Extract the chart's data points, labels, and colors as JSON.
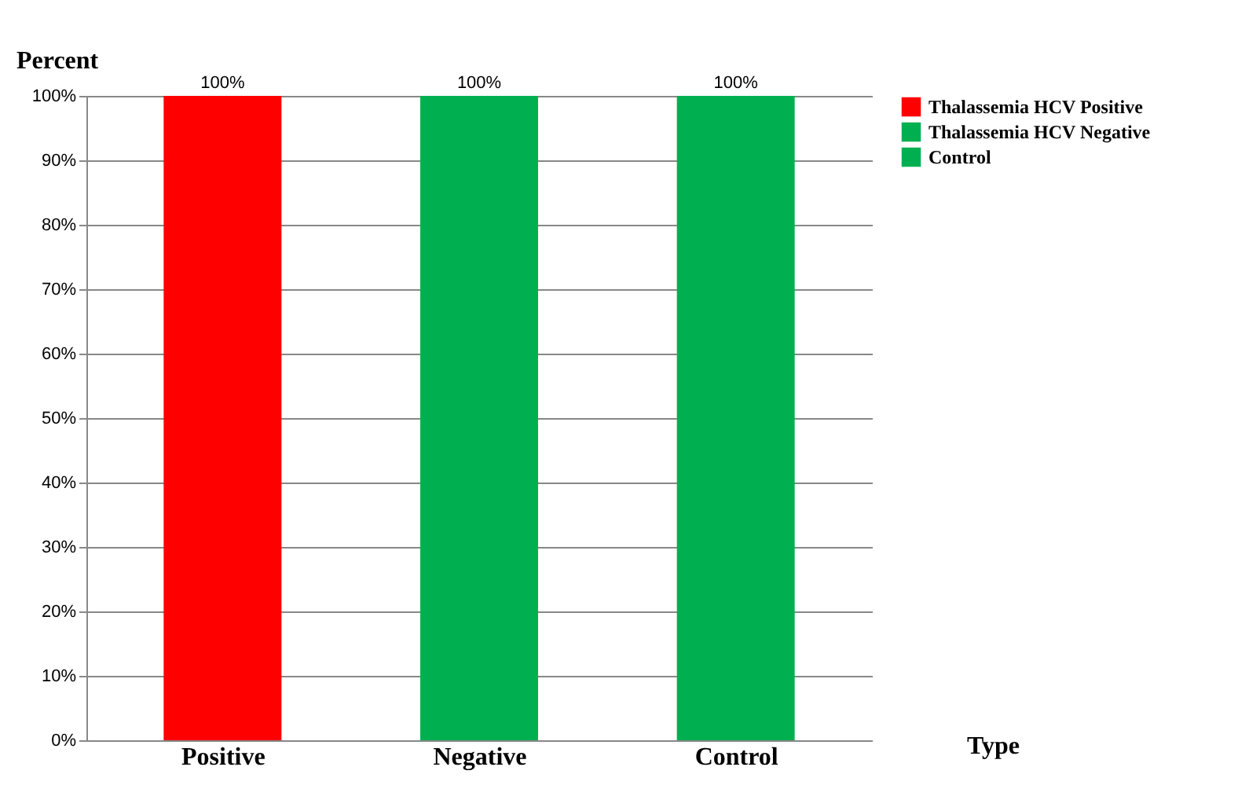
{
  "chart_data": {
    "type": "bar",
    "xlabel": "Type",
    "ylabel": "Percent",
    "categories": [
      "Positive",
      "Negative",
      "Control"
    ],
    "series": [
      {
        "name": "Thalassemia HCV Positive",
        "color": "#ff0000",
        "values": [
          100,
          null,
          null
        ],
        "value_labels": [
          "100%",
          null,
          null
        ]
      },
      {
        "name": "Thalassemia HCV Negative",
        "color": "#00b050",
        "values": [
          null,
          100,
          null
        ],
        "value_labels": [
          null,
          "100%",
          null
        ]
      },
      {
        "name": "Control",
        "color": "#00b050",
        "values": [
          null,
          null,
          100
        ],
        "value_labels": [
          null,
          null,
          "100%"
        ]
      }
    ],
    "ylim": [
      0,
      100
    ],
    "yticks": [
      {
        "value": 0,
        "label": "0%"
      },
      {
        "value": 10,
        "label": "10%"
      },
      {
        "value": 20,
        "label": "20%"
      },
      {
        "value": 30,
        "label": "30%"
      },
      {
        "value": 40,
        "label": "40%"
      },
      {
        "value": 50,
        "label": "50%"
      },
      {
        "value": 60,
        "label": "60%"
      },
      {
        "value": 70,
        "label": "70%"
      },
      {
        "value": 80,
        "label": "80%"
      },
      {
        "value": 90,
        "label": "90%"
      },
      {
        "value": 100,
        "label": "100%"
      }
    ],
    "grid": "y",
    "legend": "right"
  }
}
